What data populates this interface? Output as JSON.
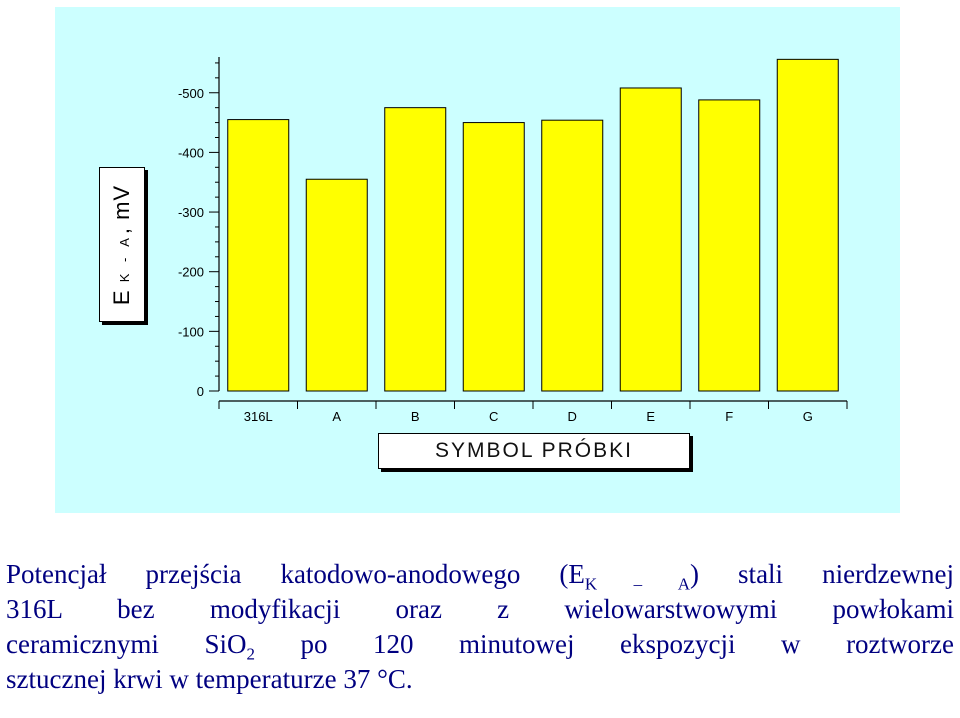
{
  "chart_data": {
    "type": "bar",
    "categories": [
      "316L",
      "A",
      "B",
      "C",
      "D",
      "E",
      "F",
      "G"
    ],
    "values": [
      -455,
      -355,
      -475,
      -450,
      -454,
      -508,
      -488,
      -556
    ],
    "ylim": [
      0,
      -560
    ],
    "yticks": [
      0,
      -100,
      -200,
      -300,
      -400,
      -500
    ],
    "ytick_labels": [
      "0",
      "-100",
      "-200",
      "-300",
      "-400",
      "-500"
    ],
    "ylabel": {
      "main": "E",
      "sub": "K - A",
      "unit": ", mV"
    },
    "xlabel": "SYMBOL PRÓBKI",
    "colors": {
      "bar": "#ffff00",
      "panel": "#ccffff",
      "axis": "#000000"
    },
    "grid": false,
    "legend": "none"
  },
  "caption": {
    "line1": {
      "pre": "Potencjał przejścia katodowo-anodowego (E",
      "sub": "K – A",
      "post": ") stali nierdzewnej"
    },
    "line2": "316L bez modyfikacji oraz z wielowarstwowymi powłokami",
    "line3": {
      "pre": "ceramicznymi SiO",
      "sub": "2",
      "post": " po 120 minutowej ekspozycji w roztworze"
    },
    "line4": "sztucznej krwi w temperaturze 37 °C.",
    "color": "#000080"
  }
}
